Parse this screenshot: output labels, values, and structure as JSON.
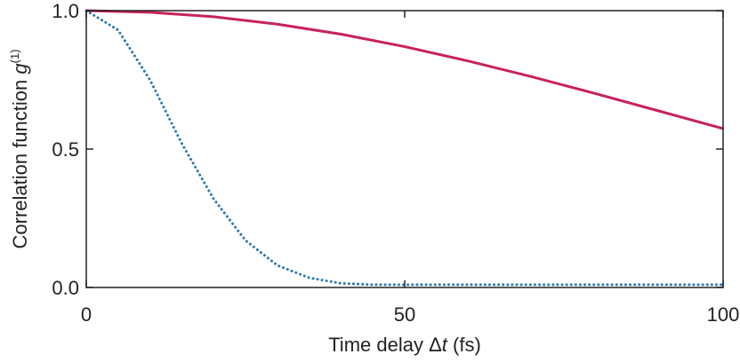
{
  "chart_data": {
    "type": "line",
    "ylabel": [
      "Correlation function ",
      "g",
      "(1)"
    ],
    "xlabel": [
      "Time delay Δ",
      "t",
      " (fs)"
    ],
    "xlim": [
      0,
      100
    ],
    "xticks": [
      0,
      50,
      100
    ],
    "ylim": [
      0,
      1
    ],
    "yticks": [
      {
        "value": 0,
        "label": "0.0"
      },
      {
        "value": 0.5,
        "label": "0.5"
      },
      {
        "value": 1,
        "label": "1.0"
      }
    ],
    "series": [
      {
        "color": "#c8215f",
        "style": "solid",
        "x": [
          0,
          10,
          20,
          30,
          40,
          50,
          60,
          70,
          80,
          90,
          100
        ],
        "values": [
          1,
          0.994,
          0.978,
          0.951,
          0.915,
          0.87,
          0.818,
          0.761,
          0.7,
          0.637,
          0.574
        ]
      },
      {
        "color": "#2a7ab0",
        "style": "dotted",
        "x": [
          0,
          5,
          10,
          15,
          20,
          25,
          30,
          35,
          40,
          45,
          50,
          60,
          70,
          80,
          90,
          100
        ],
        "values": [
          1,
          0.93,
          0.75,
          0.52,
          0.32,
          0.17,
          0.08,
          0.035,
          0.015,
          0.01,
          0.01,
          0.01,
          0.01,
          0.01,
          0.01,
          0.01
        ]
      }
    ]
  }
}
